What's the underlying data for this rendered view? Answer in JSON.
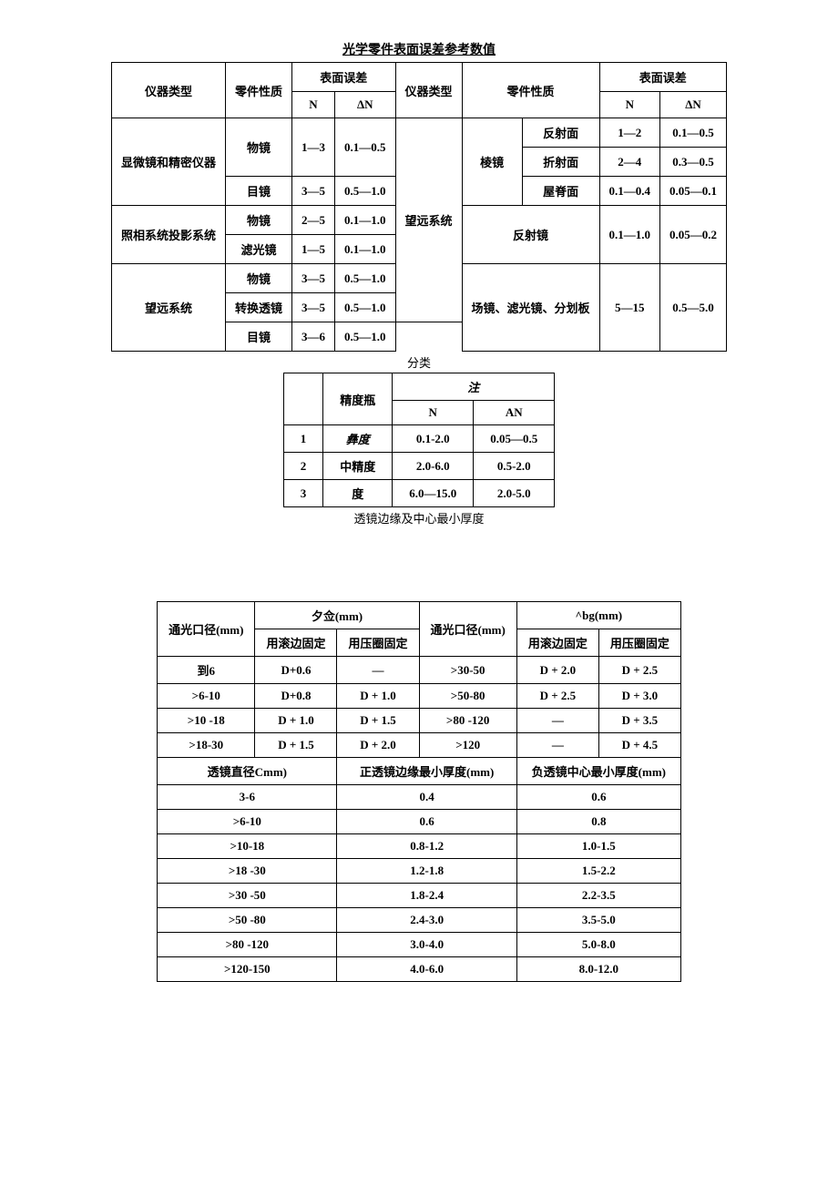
{
  "title1": "光学零件表面误差参考数值",
  "table1": {
    "headers": {
      "instrument_type": "仪器类型",
      "part_nature": "零件性质",
      "surface_error": "表面误差",
      "N": "N",
      "deltaN": "ΔN",
      "instrument_type2": "仪器类型",
      "part_nature2": "零件性质",
      "surface_error2": "表面误差",
      "N2": "N",
      "deltaN2": "ΔN"
    },
    "left": {
      "group1": {
        "label": "显微镜和精密仪器",
        "rows": [
          {
            "part": "物镜",
            "n": "1—3",
            "dn": "0.1—0.5"
          },
          {
            "part": "目镜",
            "n": "3—5",
            "dn": "0.5—1.0"
          }
        ]
      },
      "group2": {
        "label": "照相系统投影系统",
        "rows": [
          {
            "part": "物镜",
            "n": "2—5",
            "dn": "0.1—1.0"
          },
          {
            "part": "滤光镜",
            "n": "1—5",
            "dn": "0.1—1.0"
          }
        ]
      },
      "group3": {
        "label": "望远系统",
        "rows": [
          {
            "part": "物镜",
            "n": "3—5",
            "dn": "0.5—1.0"
          },
          {
            "part": "转换透镜",
            "n": "3—5",
            "dn": "0.5—1.0"
          },
          {
            "part": "目镜",
            "n": "3—6",
            "dn": "0.5—1.0"
          }
        ]
      }
    },
    "right": {
      "group": {
        "label": "望远系统",
        "sub1": {
          "label": "棱镜",
          "rows": [
            {
              "part": "反射面",
              "n": "1—2",
              "dn": "0.1—0.5"
            },
            {
              "part": "折射面",
              "n": "2—4",
              "dn": "0.3—0.5"
            },
            {
              "part": "屋脊面",
              "n": "0.1—0.4",
              "dn": "0.05—0.1"
            }
          ]
        },
        "sub2": {
          "part": "反射镜",
          "n": "0.1—1.0",
          "dn": "0.05—0.2"
        },
        "sub3": {
          "part": "场镜、滤光镜、分划板",
          "n": "5—15",
          "dn": "0.5—5.0"
        }
      }
    }
  },
  "caption1": "分类",
  "table2": {
    "headers": {
      "blank": "",
      "precision": "精度瓶",
      "note": "注",
      "N": "N",
      "AN": "AN"
    },
    "rows": [
      {
        "idx": "1",
        "prec": "彝度",
        "n": "0.1-2.0",
        "an": "0.05—0.5"
      },
      {
        "idx": "2",
        "prec": "中精度",
        "n": "2.0-6.0",
        "an": "0.5-2.0"
      },
      {
        "idx": "3",
        "prec": "度",
        "n": "6.0—15.0",
        "an": "2.0-5.0"
      }
    ]
  },
  "caption2": "透镜边缘及中心最小厚度",
  "table3a": {
    "headers": {
      "aperture": "通光口径(mm)",
      "xi": "夕佥(mm)",
      "roll": "用滚边固定",
      "press": "用压圈固定",
      "aperture2": "通光口径(mm)",
      "bg": "^bg(mm)",
      "roll2": "用滚边固定",
      "press2": "用压圈固定"
    },
    "rows": [
      {
        "d": "到6",
        "r": "D+0.6",
        "p": "—",
        "d2": ">30-50",
        "r2": "D + 2.0",
        "p2": "D + 2.5"
      },
      {
        "d": ">6-10",
        "r": "D+0.8",
        "p": "D + 1.0",
        "d2": ">50-80",
        "r2": "D + 2.5",
        "p2": "D + 3.0"
      },
      {
        "d": ">10 -18",
        "r": "D + 1.0",
        "p": "D + 1.5",
        "d2": ">80 -120",
        "r2": "—",
        "p2": "D + 3.5"
      },
      {
        "d": ">18-30",
        "r": "D + 1.5",
        "p": "D + 2.0",
        "d2": ">120",
        "r2": "—",
        "p2": "D + 4.5"
      }
    ]
  },
  "table3b": {
    "headers": {
      "diam": "透镜直径Cmm)",
      "pos": "正透镜边缘最小厚度(mm)",
      "neg": "负透镜中心最小厚度(mm)"
    },
    "rows": [
      {
        "d": "3-6",
        "p": "0.4",
        "n": "0.6"
      },
      {
        "d": ">6-10",
        "p": "0.6",
        "n": "0.8"
      },
      {
        "d": ">10-18",
        "p": "0.8-1.2",
        "n": "1.0-1.5"
      },
      {
        "d": ">18 -30",
        "p": "1.2-1.8",
        "n": "1.5-2.2"
      },
      {
        "d": ">30 -50",
        "p": "1.8-2.4",
        "n": "2.2-3.5"
      },
      {
        "d": ">50 -80",
        "p": "2.4-3.0",
        "n": "3.5-5.0"
      },
      {
        "d": ">80 -120",
        "p": "3.0-4.0",
        "n": "5.0-8.0"
      },
      {
        "d": ">120-150",
        "p": "4.0-6.0",
        "n": "8.0-12.0"
      }
    ]
  }
}
